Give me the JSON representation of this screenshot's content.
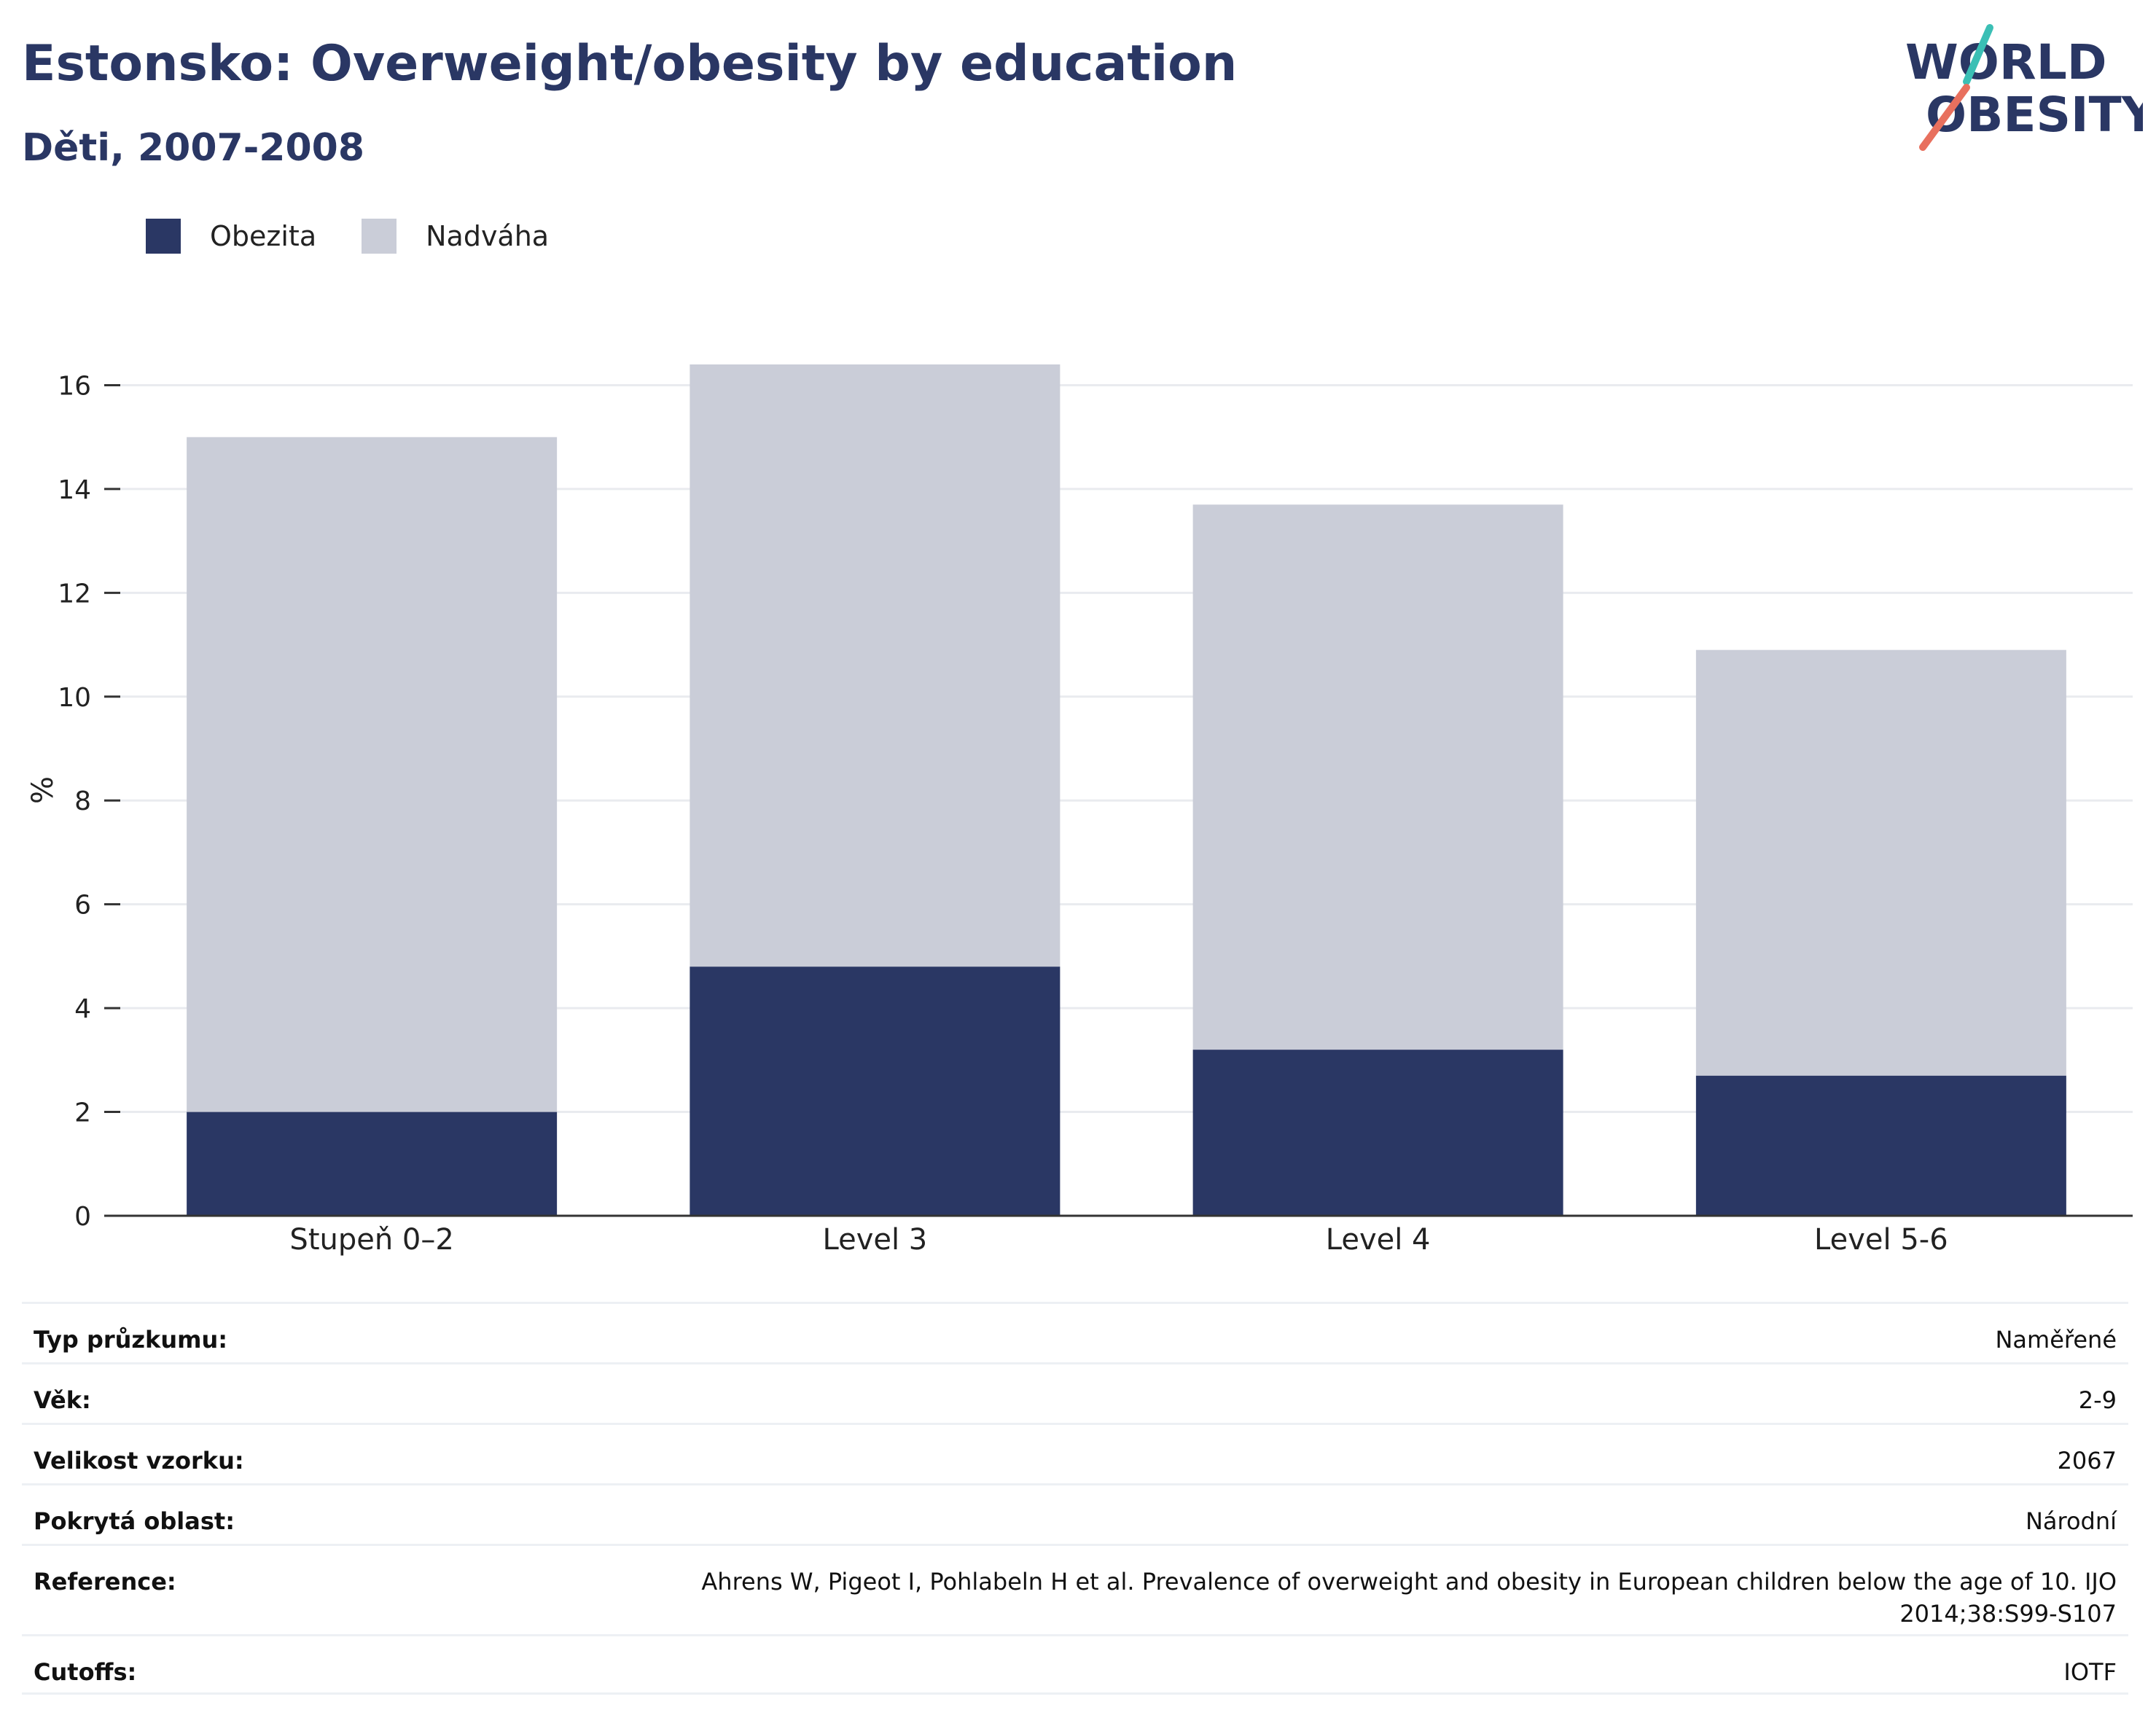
{
  "header": {
    "title": "Estonsko: Overweight/obesity by education",
    "subtitle": "Děti, 2007-2008"
  },
  "logo": {
    "line1": "WORLD",
    "line2": "OBESITY"
  },
  "colors": {
    "obesity": "#2a3764",
    "overweight": "#cacdd8",
    "title": "#2a3764",
    "logo_teal": "#3bbfb5",
    "logo_coral": "#e8705e"
  },
  "chart_data": {
    "type": "bar",
    "stacked": true,
    "categories": [
      "Stupeň 0–2",
      "Level 3",
      "Level 4",
      "Level 5-6"
    ],
    "series": [
      {
        "name": "Obezita",
        "values": [
          2.0,
          4.8,
          3.2,
          2.7
        ]
      },
      {
        "name": "Nadváha",
        "values": [
          13.0,
          11.6,
          10.5,
          8.2
        ]
      }
    ],
    "totals": [
      15.0,
      16.4,
      13.7,
      10.9
    ],
    "ylabel": "%",
    "xlabel": "",
    "ylim": [
      0,
      16.4
    ],
    "yticks": [
      0,
      2,
      4,
      6,
      8,
      10,
      12,
      14,
      16
    ],
    "grid": true,
    "legend_position": "top-left"
  },
  "meta": [
    {
      "key": "Typ průzkumu:",
      "value": "Naměřené"
    },
    {
      "key": "Věk:",
      "value": "2-9"
    },
    {
      "key": "Velikost vzorku:",
      "value": "2067"
    },
    {
      "key": "Pokrytá oblast:",
      "value": "Národní"
    },
    {
      "key": "Reference:",
      "value": "Ahrens W, Pigeot I, Pohlabeln H et al. Prevalence of overweight and obesity in European children below the age of 10. IJO 2014;38:S99-S107"
    },
    {
      "key": "Cutoffs:",
      "value": "IOTF"
    }
  ]
}
